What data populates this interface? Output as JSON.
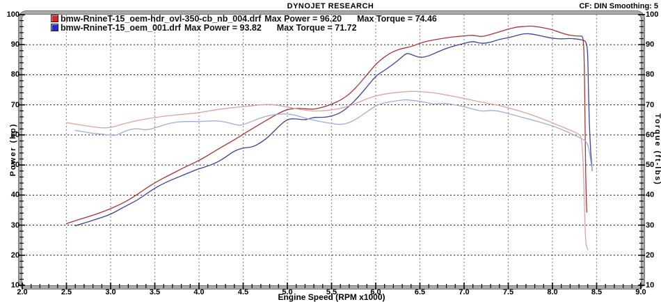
{
  "header": {
    "title": "DYNOJET RESEARCH",
    "correction": "CF: DIN  Smoothing: 5"
  },
  "legend": [
    {
      "color": "#d02828",
      "file": "bmw-RnineT-15_oem-hdr_ovl-350-cb_nb_004.drf",
      "power": "Max Power = 96.20",
      "torque": "Max Torque = 74.46"
    },
    {
      "color": "#2828d0",
      "file": "bmw-RnineT-15_oem_001.drf",
      "power": "Max Power = 93.82",
      "torque": "Max Torque = 71.72"
    }
  ],
  "chart_data": {
    "type": "line",
    "title": "DYNOJET RESEARCH",
    "xlabel": "Engine Speed (RPM x1000)",
    "ylabel_left": "Power (hp)",
    "ylabel_right": "Torque (ft-lbs)",
    "xlim": [
      2.0,
      9.0
    ],
    "ylim": [
      10,
      100
    ],
    "xticks": [
      "2.0",
      "2.5",
      "3.0",
      "3.5",
      "4.0",
      "4.5",
      "5.0",
      "5.5",
      "6.0",
      "6.5",
      "7.0",
      "7.5",
      "8.0",
      "8.5",
      "9.0"
    ],
    "yticks": [
      "10",
      "20",
      "30",
      "40",
      "50",
      "60",
      "70",
      "80",
      "90",
      "100"
    ],
    "x_minor_step": 0.1,
    "y_minor_step": 2,
    "grid": "on",
    "legend_position": "top-left",
    "series": [
      {
        "name": "bmw-RnineT-15_oem-hdr_ovl-350-cb_nb_004.drf Power (hp)",
        "axis": "left",
        "color": "#a8333a",
        "max": 96.2,
        "points": [
          [
            2.5,
            30.5
          ],
          [
            2.6,
            31.5
          ],
          [
            2.7,
            32.4
          ],
          [
            2.8,
            33.3
          ],
          [
            2.9,
            34.3
          ],
          [
            3.0,
            35.5
          ],
          [
            3.1,
            36.8
          ],
          [
            3.2,
            38.3
          ],
          [
            3.3,
            40.2
          ],
          [
            3.4,
            42.2
          ],
          [
            3.5,
            44.1
          ],
          [
            3.6,
            45.7
          ],
          [
            3.7,
            47.2
          ],
          [
            3.8,
            48.7
          ],
          [
            3.9,
            50.1
          ],
          [
            4.0,
            51.5
          ],
          [
            4.1,
            53.2
          ],
          [
            4.2,
            55.0
          ],
          [
            4.3,
            56.7
          ],
          [
            4.4,
            58.4
          ],
          [
            4.5,
            60.2
          ],
          [
            4.6,
            62.0
          ],
          [
            4.7,
            63.8
          ],
          [
            4.8,
            65.5
          ],
          [
            4.9,
            67.2
          ],
          [
            5.0,
            68.5
          ],
          [
            5.1,
            68.9
          ],
          [
            5.2,
            68.7
          ],
          [
            5.3,
            68.5
          ],
          [
            5.4,
            69.2
          ],
          [
            5.5,
            70.2
          ],
          [
            5.6,
            71.5
          ],
          [
            5.7,
            73.5
          ],
          [
            5.8,
            76.5
          ],
          [
            5.9,
            80.0
          ],
          [
            6.0,
            83.5
          ],
          [
            6.1,
            86.0
          ],
          [
            6.2,
            87.8
          ],
          [
            6.3,
            88.8
          ],
          [
            6.4,
            89.3
          ],
          [
            6.5,
            90.5
          ],
          [
            6.6,
            91.3
          ],
          [
            6.7,
            91.8
          ],
          [
            6.8,
            92.3
          ],
          [
            6.9,
            92.7
          ],
          [
            7.0,
            92.9
          ],
          [
            7.1,
            93.2
          ],
          [
            7.2,
            92.6
          ],
          [
            7.3,
            93.4
          ],
          [
            7.4,
            94.3
          ],
          [
            7.5,
            95.2
          ],
          [
            7.6,
            95.9
          ],
          [
            7.7,
            96.1
          ],
          [
            7.75,
            96.2
          ],
          [
            7.8,
            96.1
          ],
          [
            7.9,
            95.6
          ],
          [
            8.0,
            95.0
          ],
          [
            8.1,
            93.9
          ],
          [
            8.2,
            93.1
          ],
          [
            8.3,
            92.8
          ],
          [
            8.33,
            93.0
          ],
          [
            8.35,
            92.0
          ],
          [
            8.36,
            85.0
          ],
          [
            8.37,
            60.0
          ],
          [
            8.38,
            40.0
          ],
          [
            8.39,
            34.3
          ]
        ]
      },
      {
        "name": "bmw-RnineT-15_oem_001.drf Power (hp)",
        "axis": "left",
        "color": "#3b3f9e",
        "max": 93.82,
        "points": [
          [
            2.6,
            29.8
          ],
          [
            2.7,
            30.7
          ],
          [
            2.8,
            31.6
          ],
          [
            2.9,
            32.6
          ],
          [
            3.0,
            33.6
          ],
          [
            3.1,
            35.2
          ],
          [
            3.2,
            36.8
          ],
          [
            3.3,
            38.3
          ],
          [
            3.4,
            40.3
          ],
          [
            3.5,
            42.3
          ],
          [
            3.6,
            43.9
          ],
          [
            3.7,
            45.2
          ],
          [
            3.8,
            46.4
          ],
          [
            3.9,
            47.6
          ],
          [
            4.0,
            48.8
          ],
          [
            4.1,
            49.6
          ],
          [
            4.2,
            50.8
          ],
          [
            4.3,
            52.6
          ],
          [
            4.4,
            54.7
          ],
          [
            4.5,
            55.7
          ],
          [
            4.6,
            55.9
          ],
          [
            4.7,
            57.4
          ],
          [
            4.8,
            59.7
          ],
          [
            4.9,
            62.8
          ],
          [
            5.0,
            65.3
          ],
          [
            5.1,
            65.4
          ],
          [
            5.2,
            64.9
          ],
          [
            5.3,
            65.9
          ],
          [
            5.4,
            65.8
          ],
          [
            5.5,
            66.2
          ],
          [
            5.6,
            67.3
          ],
          [
            5.7,
            69.5
          ],
          [
            5.8,
            72.5
          ],
          [
            5.9,
            76.0
          ],
          [
            6.0,
            79.6
          ],
          [
            6.1,
            81.5
          ],
          [
            6.2,
            83.5
          ],
          [
            6.3,
            86.0
          ],
          [
            6.35,
            87.2
          ],
          [
            6.4,
            86.8
          ],
          [
            6.5,
            85.6
          ],
          [
            6.6,
            86.2
          ],
          [
            6.7,
            87.6
          ],
          [
            6.8,
            88.8
          ],
          [
            6.9,
            89.7
          ],
          [
            7.0,
            90.4
          ],
          [
            7.1,
            91.2
          ],
          [
            7.2,
            90.3
          ],
          [
            7.3,
            90.8
          ],
          [
            7.4,
            91.8
          ],
          [
            7.5,
            92.3
          ],
          [
            7.6,
            93.1
          ],
          [
            7.7,
            93.8
          ],
          [
            7.8,
            93.4
          ],
          [
            7.9,
            92.7
          ],
          [
            8.0,
            92.1
          ],
          [
            8.1,
            91.9
          ],
          [
            8.2,
            92.1
          ],
          [
            8.3,
            91.8
          ],
          [
            8.35,
            91.5
          ],
          [
            8.38,
            91.0
          ],
          [
            8.4,
            88.0
          ],
          [
            8.41,
            70.0
          ],
          [
            8.43,
            55.0
          ],
          [
            8.45,
            48.2
          ]
        ]
      },
      {
        "name": "bmw-RnineT-15_oem-hdr_ovl-350-cb_nb_004.drf Torque (ft-lbs)",
        "axis": "right",
        "color": "#dfa0a0",
        "max": 74.46,
        "points": [
          [
            2.5,
            64.1
          ],
          [
            2.6,
            63.6
          ],
          [
            2.7,
            63.1
          ],
          [
            2.8,
            62.7
          ],
          [
            2.9,
            62.3
          ],
          [
            3.0,
            62.4
          ],
          [
            3.1,
            63.3
          ],
          [
            3.2,
            64.1
          ],
          [
            3.3,
            64.8
          ],
          [
            3.4,
            65.3
          ],
          [
            3.5,
            65.8
          ],
          [
            3.6,
            66.2
          ],
          [
            3.7,
            66.5
          ],
          [
            3.8,
            66.8
          ],
          [
            3.9,
            67.1
          ],
          [
            4.0,
            67.4
          ],
          [
            4.1,
            67.9
          ],
          [
            4.2,
            68.4
          ],
          [
            4.3,
            68.8
          ],
          [
            4.4,
            69.1
          ],
          [
            4.5,
            69.4
          ],
          [
            4.6,
            69.7
          ],
          [
            4.7,
            70.0
          ],
          [
            4.8,
            70.2
          ],
          [
            4.9,
            69.8
          ],
          [
            5.0,
            69.3
          ],
          [
            5.1,
            68.7
          ],
          [
            5.2,
            68.2
          ],
          [
            5.3,
            67.9
          ],
          [
            5.4,
            68.0
          ],
          [
            5.5,
            68.3
          ],
          [
            5.6,
            68.8
          ],
          [
            5.7,
            69.6
          ],
          [
            5.8,
            70.8
          ],
          [
            5.9,
            72.0
          ],
          [
            6.0,
            73.0
          ],
          [
            6.1,
            73.6
          ],
          [
            6.2,
            74.0
          ],
          [
            6.3,
            74.3
          ],
          [
            6.4,
            74.5
          ],
          [
            6.5,
            74.4
          ],
          [
            6.6,
            74.2
          ],
          [
            6.7,
            73.8
          ],
          [
            6.8,
            73.3
          ],
          [
            6.9,
            72.7
          ],
          [
            7.0,
            72.1
          ],
          [
            7.1,
            71.5
          ],
          [
            7.2,
            70.9
          ],
          [
            7.3,
            70.3
          ],
          [
            7.4,
            69.8
          ],
          [
            7.5,
            69.0
          ],
          [
            7.6,
            68.2
          ],
          [
            7.7,
            67.3
          ],
          [
            7.8,
            66.3
          ],
          [
            7.9,
            65.2
          ],
          [
            8.0,
            64.0
          ],
          [
            8.1,
            62.8
          ],
          [
            8.2,
            61.6
          ],
          [
            8.3,
            60.3
          ],
          [
            8.33,
            59.0
          ],
          [
            8.35,
            50.0
          ],
          [
            8.36,
            38.0
          ],
          [
            8.37,
            28.0
          ],
          [
            8.38,
            23.5
          ],
          [
            8.4,
            21.8
          ]
        ]
      },
      {
        "name": "bmw-RnineT-15_oem_001.drf Torque (ft-lbs)",
        "axis": "right",
        "color": "#a0acd8",
        "max": 71.72,
        "points": [
          [
            2.6,
            61.5
          ],
          [
            2.7,
            61.0
          ],
          [
            2.8,
            60.5
          ],
          [
            2.9,
            60.3
          ],
          [
            3.0,
            59.9
          ],
          [
            3.05,
            59.8
          ],
          [
            3.1,
            60.4
          ],
          [
            3.2,
            61.7
          ],
          [
            3.3,
            62.2
          ],
          [
            3.4,
            61.6
          ],
          [
            3.5,
            62.3
          ],
          [
            3.6,
            63.3
          ],
          [
            3.7,
            64.1
          ],
          [
            3.8,
            64.4
          ],
          [
            3.9,
            64.5
          ],
          [
            4.0,
            64.4
          ],
          [
            4.1,
            64.6
          ],
          [
            4.2,
            64.7
          ],
          [
            4.3,
            64.3
          ],
          [
            4.4,
            63.5
          ],
          [
            4.45,
            63.2
          ],
          [
            4.5,
            63.4
          ],
          [
            4.6,
            64.5
          ],
          [
            4.7,
            65.7
          ],
          [
            4.8,
            66.5
          ],
          [
            4.9,
            66.9
          ],
          [
            5.0,
            67.0
          ],
          [
            5.1,
            66.5
          ],
          [
            5.2,
            65.6
          ],
          [
            5.3,
            64.9
          ],
          [
            5.4,
            64.3
          ],
          [
            5.5,
            63.8
          ],
          [
            5.6,
            63.4
          ],
          [
            5.7,
            64.0
          ],
          [
            5.8,
            65.6
          ],
          [
            5.9,
            67.7
          ],
          [
            6.0,
            69.7
          ],
          [
            6.1,
            70.7
          ],
          [
            6.2,
            71.2
          ],
          [
            6.3,
            71.6
          ],
          [
            6.35,
            71.7
          ],
          [
            6.4,
            71.5
          ],
          [
            6.5,
            71.2
          ],
          [
            6.6,
            70.6
          ],
          [
            6.65,
            70.2
          ],
          [
            6.7,
            70.4
          ],
          [
            6.8,
            70.5
          ],
          [
            6.9,
            70.0
          ],
          [
            7.0,
            69.4
          ],
          [
            7.1,
            68.6
          ],
          [
            7.2,
            67.8
          ],
          [
            7.3,
            68.2
          ],
          [
            7.4,
            67.9
          ],
          [
            7.5,
            67.1
          ],
          [
            7.6,
            66.3
          ],
          [
            7.7,
            65.5
          ],
          [
            7.8,
            64.7
          ],
          [
            7.9,
            63.9
          ],
          [
            8.0,
            63.0
          ],
          [
            8.1,
            61.9
          ],
          [
            8.2,
            60.6
          ],
          [
            8.3,
            59.2
          ],
          [
            8.35,
            58.5
          ],
          [
            8.38,
            57.8
          ],
          [
            8.41,
            56.0
          ],
          [
            8.44,
            50.0
          ],
          [
            8.45,
            48.5
          ]
        ]
      }
    ]
  }
}
